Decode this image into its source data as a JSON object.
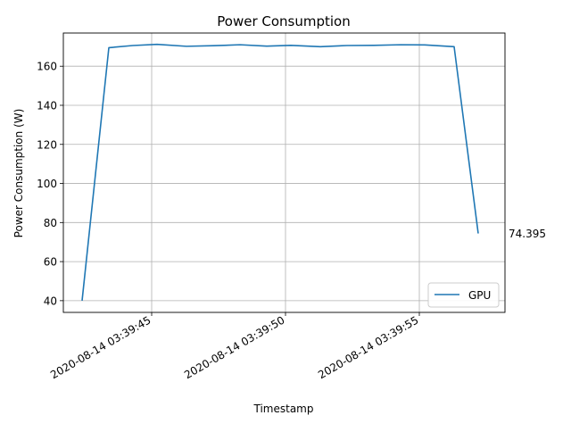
{
  "chart_data": {
    "type": "line",
    "title": "Power Consumption",
    "xlabel": "Timestamp",
    "ylabel": "Power Consumption (W)",
    "x_tick_labels": [
      "2020-08-14 03:39:45",
      "2020-08-14 03:39:50",
      "2020-08-14 03:39:55"
    ],
    "y_ticks": [
      40,
      60,
      80,
      100,
      120,
      140,
      160
    ],
    "xlim": [
      "2020-08-14 03:39:41.700",
      "2020-08-14 03:39:58.200"
    ],
    "ylim": [
      34,
      177
    ],
    "grid": true,
    "legend": {
      "position": "lower right"
    },
    "series": [
      {
        "name": "GPU",
        "color": "#1f77b4",
        "x": [
          "2020-08-14 03:39:42.40",
          "2020-08-14 03:39:43.40",
          "2020-08-14 03:39:44.30",
          "2020-08-14 03:39:45.20",
          "2020-08-14 03:39:46.30",
          "2020-08-14 03:39:47.30",
          "2020-08-14 03:39:48.30",
          "2020-08-14 03:39:49.30",
          "2020-08-14 03:39:50.20",
          "2020-08-14 03:39:51.30",
          "2020-08-14 03:39:52.30",
          "2020-08-14 03:39:53.30",
          "2020-08-14 03:39:54.30",
          "2020-08-14 03:39:55.20",
          "2020-08-14 03:39:56.30",
          "2020-08-14 03:39:57.20"
        ],
        "values": [
          40,
          169.5,
          170.6,
          171.2,
          170.2,
          170.5,
          171.0,
          170.3,
          170.7,
          170.0,
          170.6,
          170.7,
          171.0,
          170.9,
          170.0,
          74.395
        ]
      }
    ],
    "annotations": [
      {
        "text": "74.395",
        "x": "2020-08-14 03:39:57.20",
        "y": 74.395
      }
    ]
  }
}
